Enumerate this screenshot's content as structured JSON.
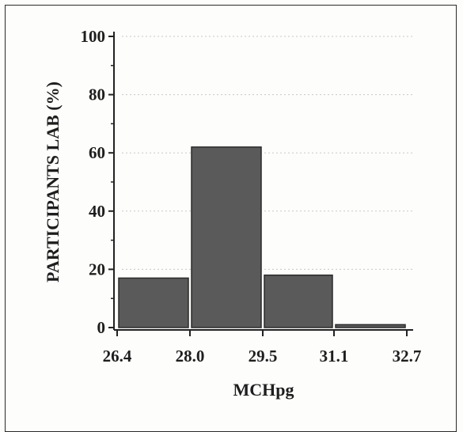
{
  "chart_data": {
    "type": "bar",
    "xlabel": "MCHpg",
    "ylabel": "PARTICIPANTS LAB (%)",
    "x_ticks": [
      "26.4",
      "28.0",
      "29.5",
      "31.1",
      "32.7"
    ],
    "y_ticks": [
      "0",
      "20",
      "40",
      "60",
      "80",
      "100"
    ],
    "ylim": [
      0,
      100
    ],
    "bins": [
      {
        "from": "26.4",
        "to": "28.0",
        "value": 17
      },
      {
        "from": "28.0",
        "to": "29.5",
        "value": 62
      },
      {
        "from": "29.5",
        "to": "31.1",
        "value": 18
      },
      {
        "from": "31.1",
        "to": "32.7",
        "value": 1
      }
    ],
    "grid": "dotted horizontal",
    "colors": {
      "bar": "#5a5a5a",
      "bar_edge": "#2b2b2b",
      "axis": "#222222"
    }
  }
}
